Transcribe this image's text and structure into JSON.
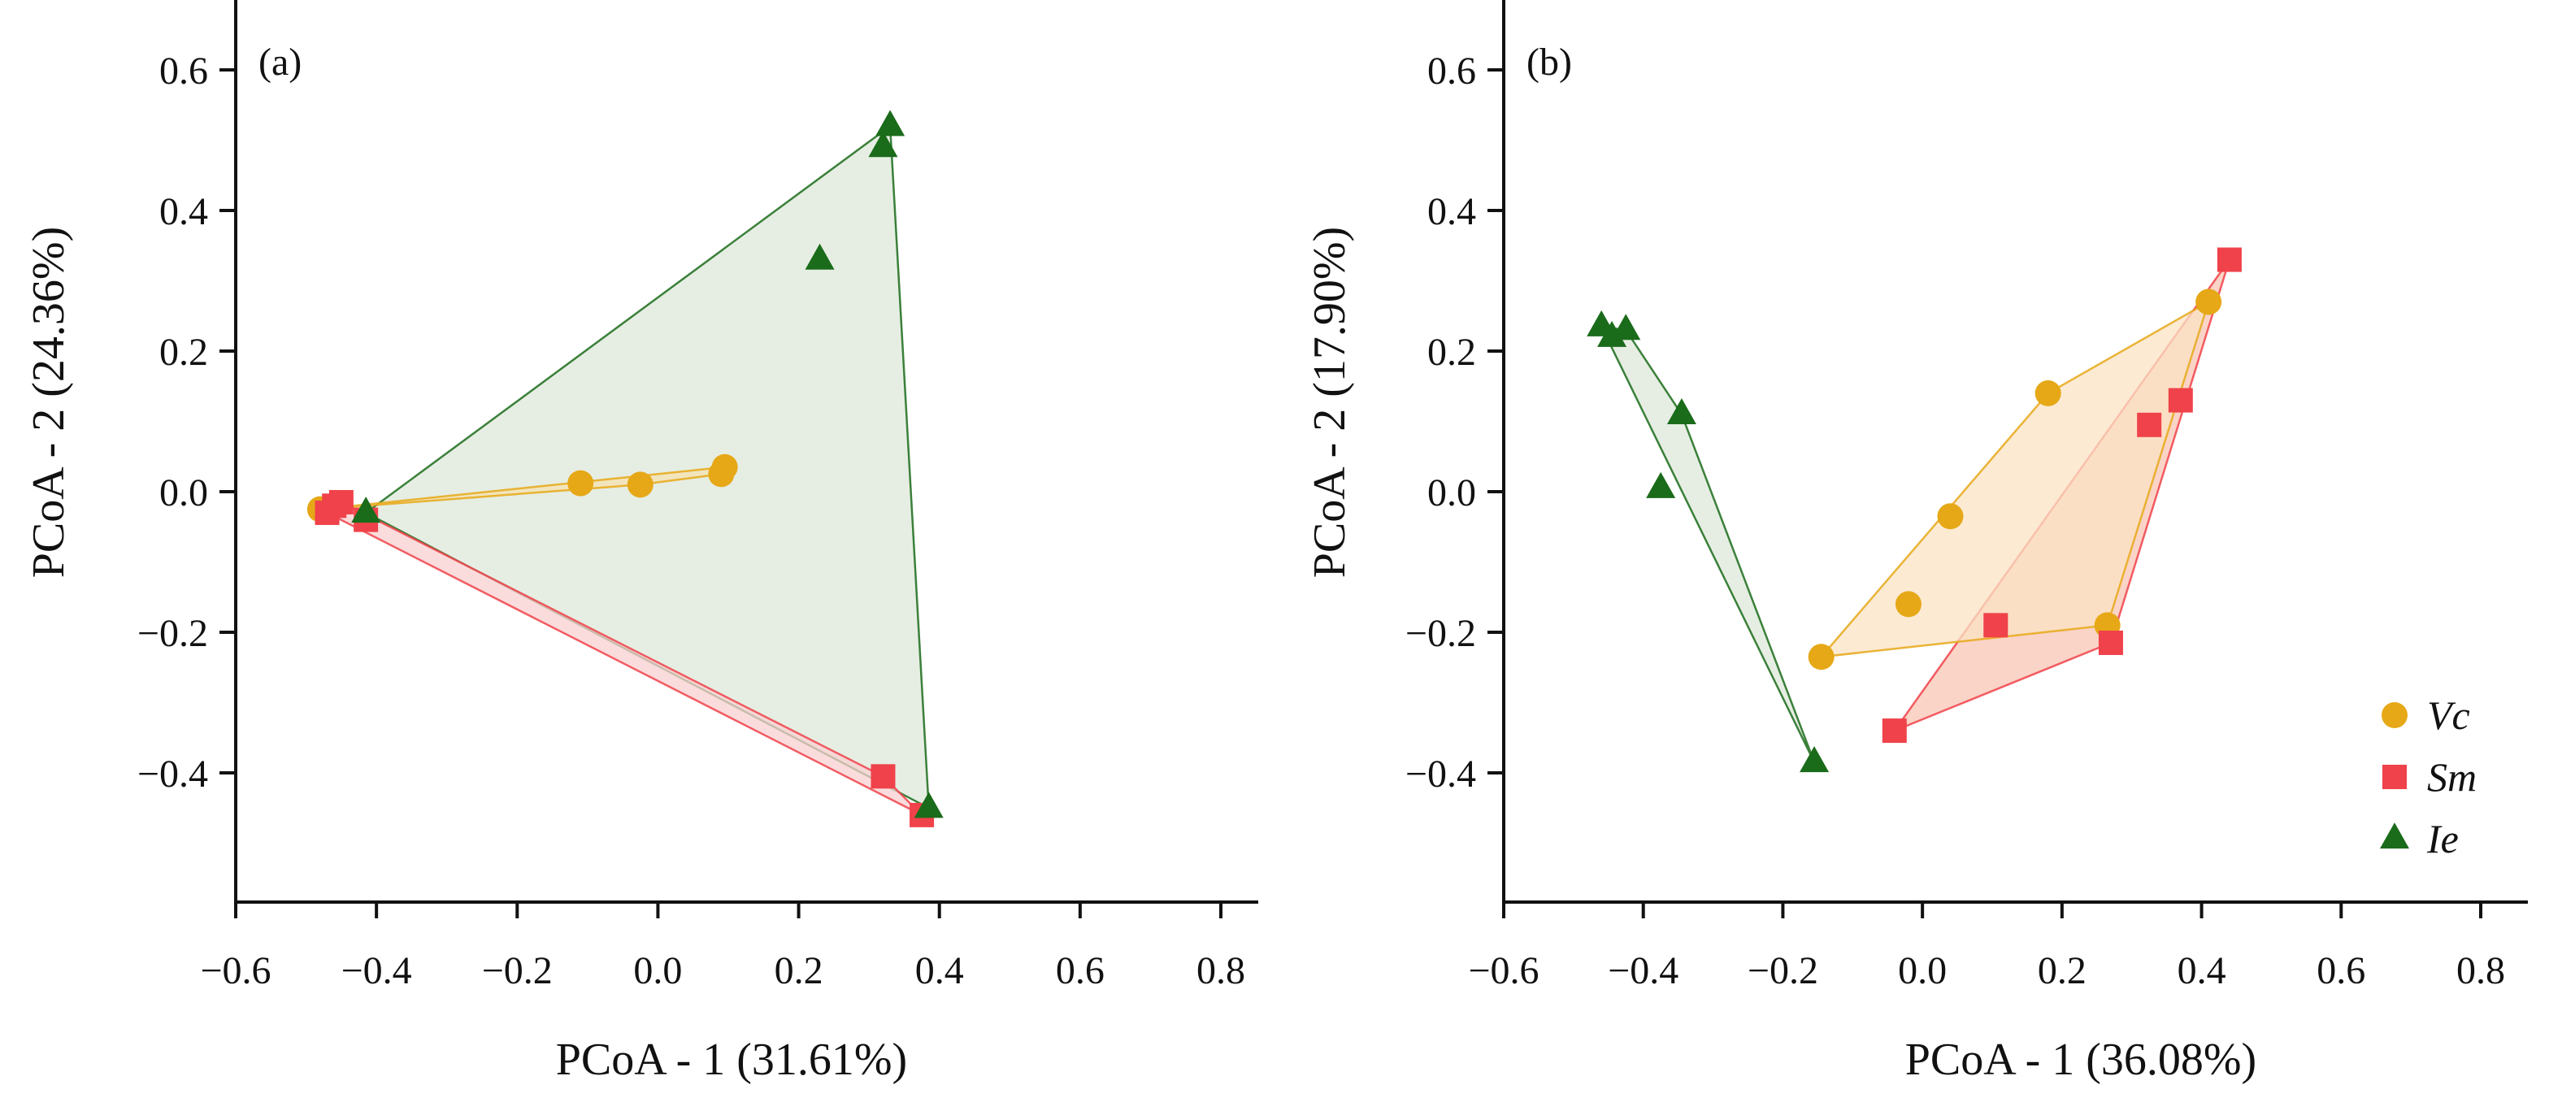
{
  "chart_data": [
    {
      "type": "scatter",
      "panel_label": "(a)",
      "xlabel": "PCoA - 1 (31.61%)",
      "ylabel": "PCoA - 2 (24.36%)",
      "xlim": [
        -0.6,
        0.85
      ],
      "ylim": [
        -0.58,
        0.68
      ],
      "x_ticks": [
        -0.6,
        -0.4,
        -0.2,
        0.0,
        0.2,
        0.4,
        0.6,
        0.8
      ],
      "x_tick_labels": [
        "−0.6",
        "−0.4",
        "−0.2",
        "0.0",
        "0.2",
        "0.4",
        "0.6",
        "0.8"
      ],
      "y_ticks": [
        -0.4,
        -0.2,
        0.0,
        0.2,
        0.4,
        0.6
      ],
      "y_tick_labels": [
        "−0.4",
        "−0.2",
        "0.0",
        "0.2",
        "0.4",
        "0.6"
      ],
      "grid": false,
      "series": [
        {
          "name": "Ie",
          "marker": "triangle",
          "color": "#1a6b1a",
          "fill": "#dde8da",
          "points": [
            [
              0.33,
              0.52
            ],
            [
              0.32,
              0.49
            ],
            [
              0.23,
              0.33
            ],
            [
              -0.415,
              -0.03
            ],
            [
              0.385,
              -0.45
            ]
          ],
          "hull": [
            [
              0.33,
              0.52
            ],
            [
              0.385,
              -0.45
            ],
            [
              -0.415,
              -0.03
            ]
          ]
        },
        {
          "name": "Sm",
          "marker": "square",
          "color": "#f0424a",
          "fill": "#f8d0d2",
          "points": [
            [
              -0.47,
              -0.03
            ],
            [
              -0.46,
              -0.02
            ],
            [
              -0.45,
              -0.015
            ],
            [
              -0.415,
              -0.04
            ],
            [
              0.32,
              -0.405
            ],
            [
              0.375,
              -0.46
            ]
          ],
          "hull": [
            [
              -0.47,
              -0.03
            ],
            [
              -0.45,
              -0.015
            ],
            [
              0.32,
              -0.405
            ],
            [
              0.375,
              -0.46
            ]
          ]
        },
        {
          "name": "Vc",
          "marker": "circle",
          "color": "#e6a817",
          "fill": "#f6e2b0",
          "points": [
            [
              -0.48,
              -0.025
            ],
            [
              -0.11,
              0.012
            ],
            [
              -0.025,
              0.01
            ],
            [
              0.09,
              0.025
            ],
            [
              0.095,
              0.035
            ]
          ],
          "hull": [
            [
              -0.48,
              -0.025
            ],
            [
              0.095,
              0.035
            ],
            [
              0.09,
              0.025
            ],
            [
              -0.025,
              0.01
            ]
          ]
        }
      ],
      "legend": null
    },
    {
      "type": "scatter",
      "panel_label": "(b)",
      "xlabel": "PCoA - 1 (36.08%)",
      "ylabel": "PCoA - 2 (17.90%)",
      "xlim": [
        -0.6,
        0.85
      ],
      "ylim": [
        -0.58,
        0.68
      ],
      "x_ticks": [
        -0.6,
        -0.4,
        -0.2,
        0.0,
        0.2,
        0.4,
        0.6,
        0.8
      ],
      "x_tick_labels": [
        "−0.6",
        "−0.4",
        "−0.2",
        "0.0",
        "0.2",
        "0.4",
        "0.6",
        "0.8"
      ],
      "y_ticks": [
        -0.4,
        -0.2,
        0.0,
        0.2,
        0.4,
        0.6
      ],
      "y_tick_labels": [
        "−0.4",
        "−0.2",
        "0.0",
        "0.2",
        "0.4",
        "0.6"
      ],
      "grid": false,
      "series": [
        {
          "name": "Ie",
          "marker": "triangle",
          "color": "#1a6b1a",
          "fill": "#dde8da",
          "points": [
            [
              -0.46,
              0.235
            ],
            [
              -0.445,
              0.22
            ],
            [
              -0.425,
              0.23
            ],
            [
              -0.345,
              0.11
            ],
            [
              -0.375,
              0.005
            ],
            [
              -0.155,
              -0.385
            ]
          ],
          "hull": [
            [
              -0.46,
              0.235
            ],
            [
              -0.425,
              0.23
            ],
            [
              -0.345,
              0.11
            ],
            [
              -0.155,
              -0.385
            ]
          ]
        },
        {
          "name": "Sm",
          "marker": "square",
          "color": "#f0424a",
          "fill": "#f8c6b4",
          "points": [
            [
              0.44,
              0.33
            ],
            [
              0.37,
              0.13
            ],
            [
              0.325,
              0.095
            ],
            [
              0.105,
              -0.19
            ],
            [
              0.27,
              -0.215
            ],
            [
              -0.04,
              -0.34
            ]
          ],
          "hull": [
            [
              0.44,
              0.33
            ],
            [
              0.27,
              -0.215
            ],
            [
              -0.04,
              -0.34
            ]
          ]
        },
        {
          "name": "Vc",
          "marker": "circle",
          "color": "#e6a817",
          "fill": "#fbe3c4",
          "points": [
            [
              0.41,
              0.27
            ],
            [
              0.18,
              0.14
            ],
            [
              0.04,
              -0.035
            ],
            [
              -0.02,
              -0.16
            ],
            [
              -0.145,
              -0.235
            ],
            [
              0.265,
              -0.19
            ]
          ],
          "hull": [
            [
              0.41,
              0.27
            ],
            [
              0.265,
              -0.19
            ],
            [
              -0.145,
              -0.235
            ],
            [
              0.18,
              0.14
            ]
          ]
        }
      ],
      "legend": {
        "position": "bottom-right",
        "entries": [
          {
            "label": "Vc",
            "marker": "circle",
            "color": "#e6a817"
          },
          {
            "label": "Sm",
            "marker": "square",
            "color": "#f0424a"
          },
          {
            "label": "Ie",
            "marker": "triangle",
            "color": "#1a6b1a"
          }
        ]
      }
    }
  ]
}
